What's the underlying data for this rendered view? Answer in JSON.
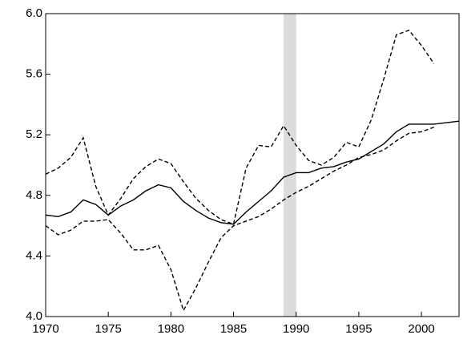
{
  "chart_data": {
    "type": "line",
    "x": [
      1970,
      1971,
      1972,
      1973,
      1974,
      1975,
      1976,
      1977,
      1978,
      1979,
      1980,
      1981,
      1982,
      1983,
      1984,
      1985,
      1986,
      1987,
      1988,
      1989,
      1990,
      1991,
      1992,
      1993,
      1994,
      1995,
      1996,
      1997,
      1998,
      1999,
      2000,
      2001,
      2002,
      2003
    ],
    "series": [
      {
        "color": "#000000",
        "dash": "solid",
        "values": [
          4.67,
          4.66,
          4.69,
          4.77,
          4.74,
          4.67,
          4.73,
          4.77,
          4.83,
          4.87,
          4.85,
          4.76,
          4.7,
          4.65,
          4.62,
          4.61,
          4.69,
          4.76,
          4.83,
          4.92,
          4.95,
          4.95,
          4.98,
          4.99,
          5.02,
          5.04,
          5.09,
          5.14,
          5.22,
          5.27,
          5.27,
          5.27,
          5.28,
          5.29
        ]
      },
      {
        "color": "#000000",
        "dash": "dashed",
        "values": [
          4.94,
          4.98,
          5.05,
          5.18,
          4.86,
          4.67,
          4.78,
          4.91,
          4.99,
          5.04,
          5.01,
          4.89,
          4.78,
          4.7,
          4.64,
          4.61,
          4.98,
          5.13,
          5.12,
          5.26,
          5.13,
          5.03,
          5.0,
          5.05,
          5.15,
          5.12,
          5.3,
          5.57,
          5.86,
          5.89,
          5.79,
          5.67,
          null,
          null
        ]
      },
      {
        "color": "#000000",
        "dash": "dashed",
        "values": [
          4.6,
          4.54,
          4.57,
          4.63,
          4.63,
          4.64,
          4.55,
          4.44,
          4.44,
          4.47,
          4.31,
          4.04,
          4.19,
          4.36,
          4.52,
          4.6,
          4.63,
          4.66,
          4.71,
          4.77,
          4.82,
          4.86,
          4.91,
          4.96,
          5.0,
          5.05,
          5.07,
          5.1,
          5.16,
          5.21,
          5.22,
          5.25,
          null,
          null
        ]
      }
    ],
    "shaded_regions": [
      [
        1989,
        1990
      ]
    ],
    "shade_color": "#dcdcdc",
    "xlim": [
      1970,
      2003
    ],
    "xticks": [
      1970,
      1975,
      1980,
      1985,
      1990,
      1995,
      2000
    ],
    "ylim": [
      4,
      6
    ],
    "yticks": [
      {
        "value": 4,
        "label": "4.0"
      },
      4.4,
      4.8,
      5.2,
      5.6,
      {
        "value": 6,
        "label": "6.0"
      }
    ]
  }
}
